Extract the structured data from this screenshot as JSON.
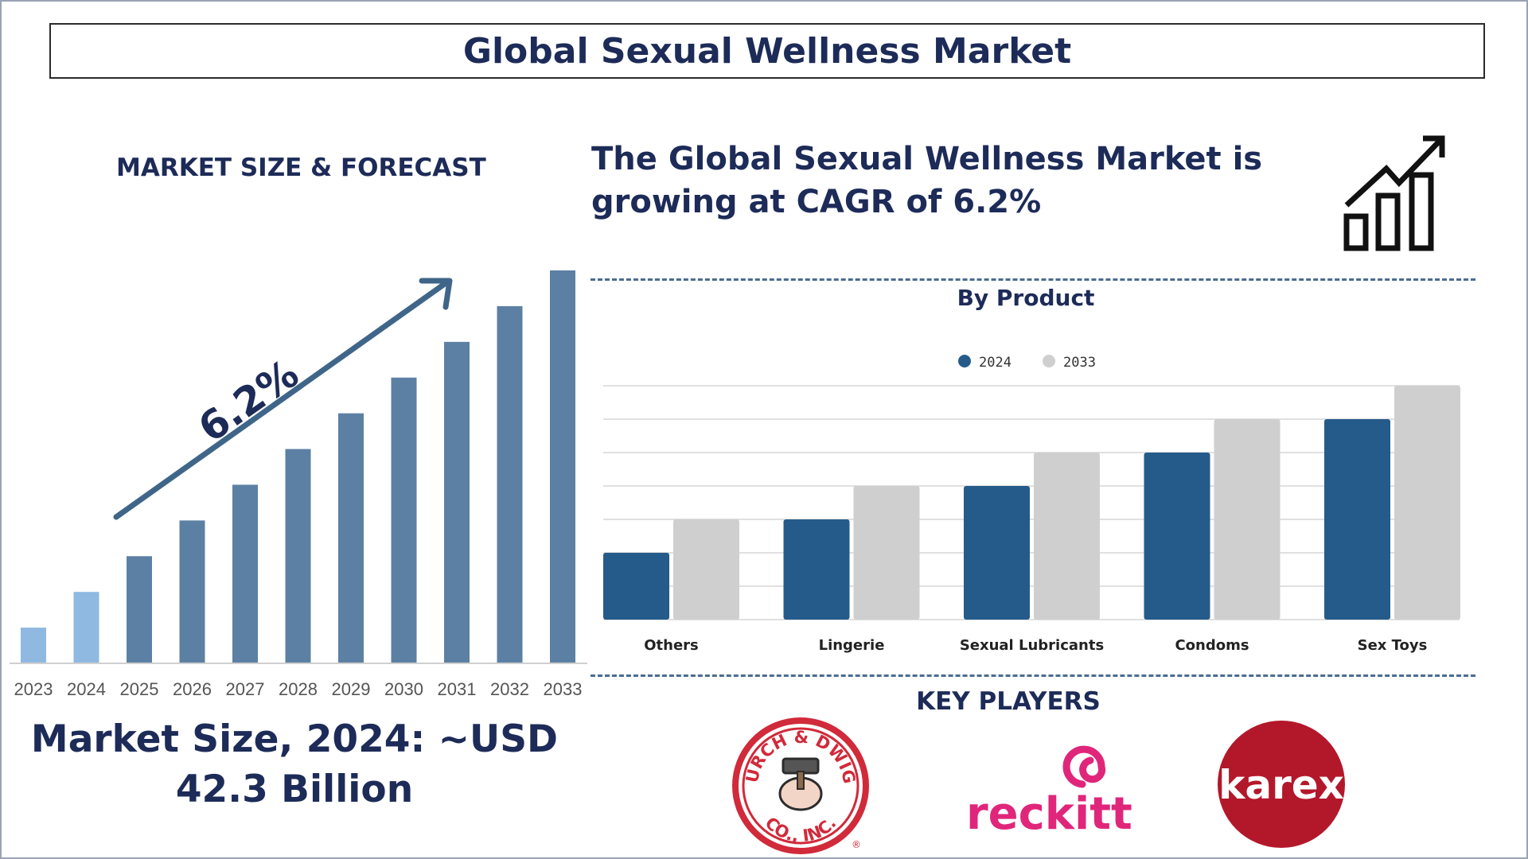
{
  "header": {
    "title": "Global Sexual Wellness Market"
  },
  "left_panel": {
    "heading": "MARKET SIZE & FORECAST",
    "cagr_label": "6.2%",
    "market_size_line1": "Market Size, 2024: ~USD",
    "market_size_line2": "42.3 Billion"
  },
  "right_panel": {
    "headline": "The Global Sexual Wellness Market is growing at CAGR of 6.2%",
    "key_players_title": "KEY PLAYERS",
    "key_players": [
      {
        "name": "CHURCH & DWIGHT CO., INC.",
        "text_top": "CHURCH & DWIGHT",
        "text_bottom": "CO., INC.",
        "mark": "®",
        "color": "#d12a3a"
      },
      {
        "name": "reckitt",
        "color": "#e0267b"
      },
      {
        "name": "karex",
        "color": "#b3182a"
      }
    ],
    "icon": "growth-chart-icon"
  },
  "colors": {
    "navy": "#1d2b58",
    "bar_2024": "#255b8a",
    "bar_2033": "#cfcfcf",
    "forecast_bar": "#5c80a3",
    "history_bar": "#8fb9e0",
    "arrow": "#3f6689"
  },
  "chart_data": [
    {
      "type": "bar",
      "title": "MARKET SIZE & FORECAST",
      "categories": [
        "2023",
        "2024",
        "2025",
        "2026",
        "2027",
        "2028",
        "2029",
        "2030",
        "2031",
        "2032",
        "2033"
      ],
      "values": [
        1,
        2,
        3,
        4,
        5,
        6,
        7,
        8,
        9,
        10,
        11
      ],
      "annotation": "6.2%",
      "ylim": [
        0,
        11
      ]
    },
    {
      "type": "bar",
      "title": "By Product",
      "categories": [
        "Others",
        "Lingerie",
        "Sexual Lubricants",
        "Condoms",
        "Sex Toys"
      ],
      "series": [
        {
          "name": "2024",
          "values": [
            2,
            3,
            4,
            5,
            6
          ]
        },
        {
          "name": "2033",
          "values": [
            3,
            4,
            5,
            6,
            7
          ]
        }
      ],
      "ylim": [
        0,
        7
      ],
      "grid": true,
      "legend": "top-center"
    }
  ]
}
